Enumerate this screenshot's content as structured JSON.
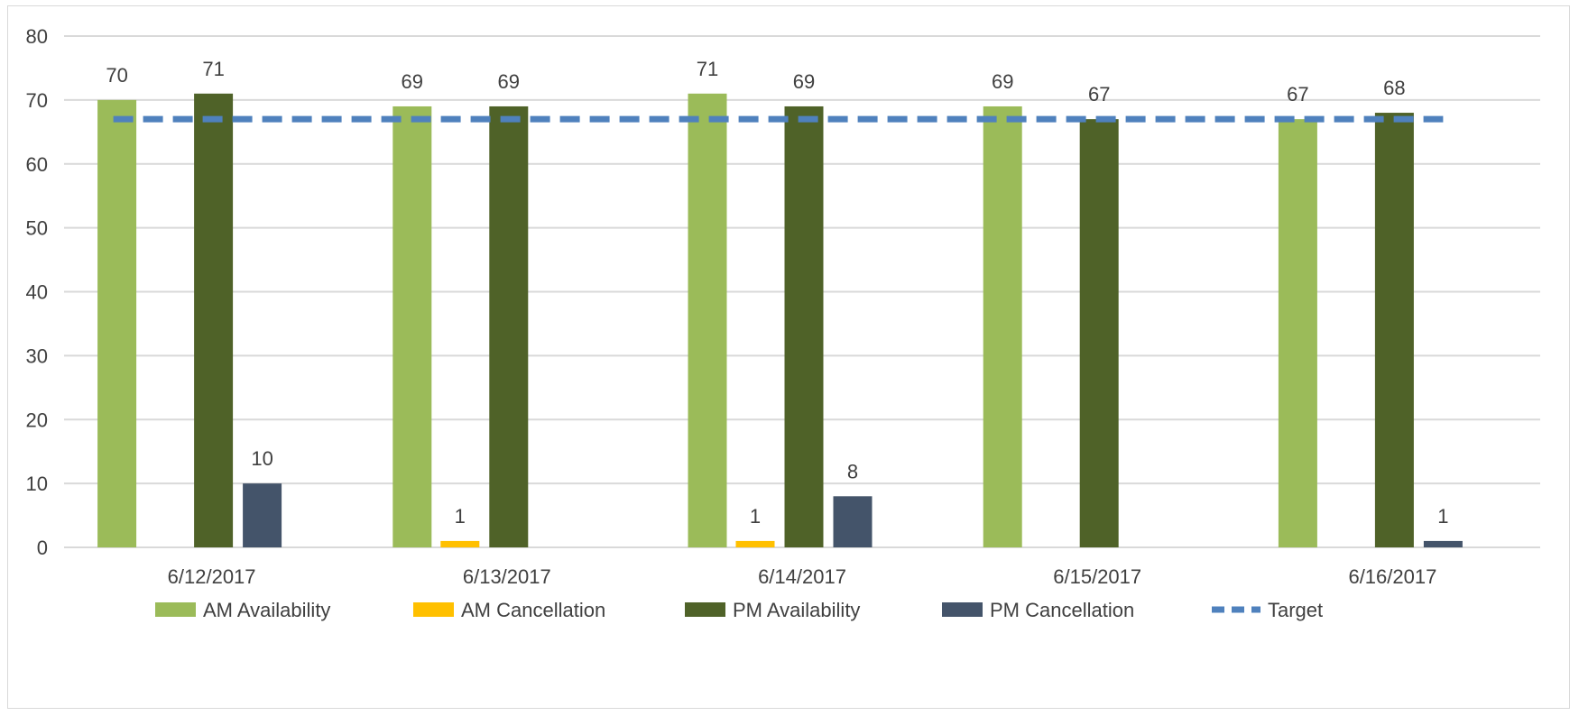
{
  "chart_data": {
    "type": "bar",
    "categories": [
      "6/12/2017",
      "6/13/2017",
      "6/14/2017",
      "6/15/2017",
      "6/16/2017"
    ],
    "series": [
      {
        "name": "AM Availability",
        "color": "#9bbb59",
        "values": [
          70,
          69,
          71,
          69,
          67
        ]
      },
      {
        "name": "AM Cancellation",
        "color": "#ffc000",
        "values": [
          0,
          1,
          1,
          0,
          0
        ]
      },
      {
        "name": "PM Availability",
        "color": "#4f6228",
        "values": [
          71,
          69,
          69,
          67,
          68
        ]
      },
      {
        "name": "PM Cancellation",
        "color": "#44546a",
        "values": [
          10,
          0,
          8,
          0,
          1
        ]
      }
    ],
    "target": {
      "name": "Target",
      "color": "#4f81bd",
      "value": 67,
      "style": "dashed"
    },
    "data_labels": [
      [
        "70",
        "",
        "71",
        "10"
      ],
      [
        "69",
        "1",
        "69",
        ""
      ],
      [
        "71",
        "1",
        "69",
        "8"
      ],
      [
        "69",
        "",
        "67",
        ""
      ],
      [
        "67",
        "",
        "68",
        "1"
      ]
    ],
    "y_ticks": [
      "0",
      "10",
      "20",
      "30",
      "40",
      "50",
      "60",
      "70",
      "80"
    ],
    "ylim": [
      0,
      80
    ],
    "grid": true,
    "legend": "bottom",
    "title": "",
    "xlabel": "",
    "ylabel": ""
  }
}
